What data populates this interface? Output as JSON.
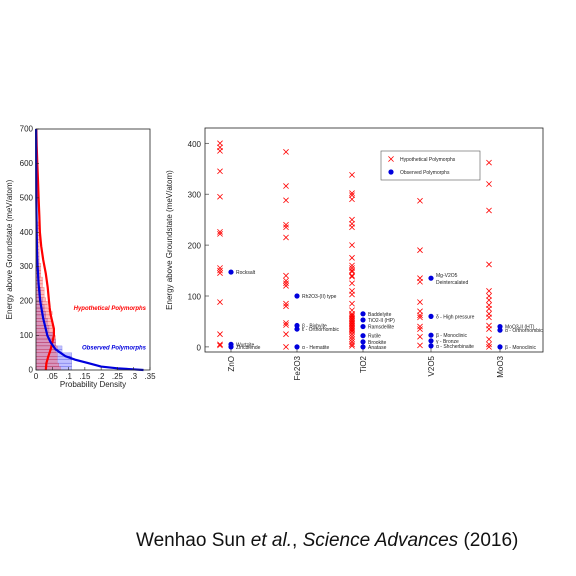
{
  "citation": {
    "author": "Wenhao Sun",
    "etal": "et al.",
    "journal": "Science Advances",
    "year": "(2016)"
  },
  "colors": {
    "hypothetical": "#ff0000",
    "observed": "#0000dd"
  },
  "chart_data": [
    {
      "type": "area",
      "orientation": "horizontal",
      "xlabel": "Probability Density",
      "ylabel": "Energy above Groundstate (meV/atom)",
      "xlim": [
        0,
        0.35
      ],
      "ylim": [
        0,
        700
      ],
      "xticks": [
        "0",
        ".05",
        ".1",
        ".15",
        ".2",
        ".25",
        ".3",
        ".35"
      ],
      "yticks": [
        "0",
        "100",
        "200",
        "300",
        "400",
        "500",
        "600",
        "700"
      ],
      "series": [
        {
          "name": "Hypothetical Polymorphs",
          "bins": [
            [
              0,
              0.075
            ],
            [
              10,
              0.07
            ],
            [
              20,
              0.065
            ],
            [
              30,
              0.065
            ],
            [
              40,
              0.065
            ],
            [
              50,
              0.06
            ],
            [
              60,
              0.065
            ],
            [
              70,
              0.06
            ],
            [
              80,
              0.06
            ],
            [
              90,
              0.06
            ],
            [
              100,
              0.055
            ],
            [
              110,
              0.055
            ],
            [
              120,
              0.05
            ],
            [
              130,
              0.05
            ],
            [
              140,
              0.05
            ],
            [
              150,
              0.045
            ],
            [
              160,
              0.05
            ],
            [
              170,
              0.04
            ],
            [
              180,
              0.035
            ],
            [
              190,
              0.035
            ],
            [
              200,
              0.03
            ],
            [
              210,
              0.025
            ],
            [
              220,
              0.025
            ],
            [
              230,
              0.025
            ],
            [
              240,
              0.02
            ],
            [
              250,
              0.02
            ],
            [
              260,
              0.02
            ],
            [
              270,
              0.015
            ],
            [
              280,
              0.015
            ],
            [
              290,
              0.015
            ],
            [
              300,
              0.015
            ],
            [
              310,
              0.01
            ],
            [
              320,
              0.01
            ],
            [
              330,
              0.01
            ],
            [
              340,
              0.01
            ],
            [
              350,
              0.01
            ],
            [
              360,
              0.01
            ],
            [
              370,
              0.01
            ],
            [
              380,
              0.01
            ],
            [
              390,
              0.01
            ],
            [
              400,
              0.01
            ],
            [
              410,
              0.008
            ],
            [
              420,
              0.008
            ]
          ],
          "curve": [
            [
              0,
              0.03
            ],
            [
              20,
              0.032
            ],
            [
              40,
              0.038
            ],
            [
              60,
              0.045
            ],
            [
              80,
              0.05
            ],
            [
              100,
              0.055
            ],
            [
              120,
              0.055
            ],
            [
              140,
              0.05
            ],
            [
              160,
              0.045
            ],
            [
              180,
              0.042
            ],
            [
              200,
              0.04
            ],
            [
              240,
              0.036
            ],
            [
              280,
              0.03
            ],
            [
              320,
              0.022
            ],
            [
              360,
              0.016
            ],
            [
              400,
              0.012
            ],
            [
              450,
              0.01
            ],
            [
              500,
              0.008
            ],
            [
              550,
              0.006
            ],
            [
              600,
              0.004
            ],
            [
              650,
              0.002
            ],
            [
              700,
              0.001
            ]
          ]
        },
        {
          "name": "Observed Polymorphs",
          "bins": [
            [
              0,
              0.11
            ],
            [
              10,
              0.11
            ],
            [
              20,
              0.11
            ],
            [
              30,
              0.11
            ],
            [
              40,
              0.11
            ],
            [
              50,
              0.08
            ],
            [
              60,
              0.08
            ],
            [
              70,
              0.06
            ],
            [
              80,
              0.06
            ],
            [
              90,
              0.05
            ],
            [
              100,
              0.05
            ],
            [
              110,
              0.04
            ],
            [
              120,
              0.04
            ],
            [
              130,
              0.035
            ],
            [
              140,
              0.035
            ],
            [
              150,
              0.03
            ],
            [
              160,
              0.03
            ],
            [
              170,
              0.025
            ],
            [
              180,
              0.025
            ],
            [
              190,
              0.02
            ],
            [
              200,
              0.02
            ],
            [
              210,
              0.015
            ],
            [
              220,
              0.015
            ],
            [
              230,
              0.015
            ],
            [
              240,
              0.01
            ],
            [
              250,
              0.01
            ],
            [
              260,
              0.01
            ],
            [
              270,
              0.01
            ],
            [
              280,
              0.01
            ],
            [
              290,
              0.01
            ]
          ],
          "curve": [
            [
              0,
              0.33
            ],
            [
              5,
              0.25
            ],
            [
              10,
              0.2
            ],
            [
              20,
              0.16
            ],
            [
              30,
              0.12
            ],
            [
              40,
              0.09
            ],
            [
              60,
              0.06
            ],
            [
              80,
              0.045
            ],
            [
              100,
              0.035
            ],
            [
              150,
              0.022
            ],
            [
              200,
              0.013
            ],
            [
              250,
              0.008
            ],
            [
              300,
              0.005
            ],
            [
              350,
              0.003
            ],
            [
              400,
              0.002
            ],
            [
              500,
              0.001
            ],
            [
              600,
              0.0005
            ],
            [
              700,
              0.0002
            ]
          ]
        }
      ]
    },
    {
      "type": "scatter",
      "ylabel": "Energy above Groundstate (meV/atom)",
      "categories": [
        "ZnO",
        "Fe2O3",
        "TiO2",
        "V2O5",
        "MoO3"
      ],
      "ylim": [
        -10,
        430
      ],
      "yticks": [
        "0",
        "100",
        "200",
        "300",
        "400"
      ],
      "legend_position": "top-right",
      "series": [
        {
          "name": "Hypothetical Polymorphs",
          "points": {
            "ZnO": [
              400,
              392,
              385,
              345,
              295,
              226,
              222,
              155,
              150,
              145,
              88,
              25,
              5,
              3
            ],
            "Fe2O3": [
              383,
              316,
              288,
              240,
              235,
              215,
              140,
              130,
              125,
              120,
              85,
              80,
              47,
              43,
              25,
              0
            ],
            "TiO2": [
              338,
              302,
              298,
              290,
              250,
              242,
              235,
              200,
              175,
              160,
              155,
              150,
              148,
              140,
              138,
              125,
              110,
              103,
              85,
              72,
              65,
              62,
              60,
              57,
              55,
              52,
              50,
              47,
              45,
              42,
              40,
              37,
              35,
              32,
              30,
              25,
              20,
              15,
              10,
              5,
              2
            ],
            "V2O5": [
              287,
              190,
              135,
              128,
              88,
              70,
              62,
              58,
              40,
              35,
              20,
              3
            ],
            "MoO3": [
              362,
              320,
              268,
              162,
              110,
              100,
              92,
              82,
              75,
              65,
              58,
              42,
              35,
              15,
              5,
              0
            ]
          }
        },
        {
          "name": "Observed Polymorphs",
          "points": [
            {
              "category": "ZnO",
              "y": 147,
              "label": "Rocksalt"
            },
            {
              "category": "ZnO",
              "y": 5,
              "label": "Wurtzite"
            },
            {
              "category": "ZnO",
              "y": 0,
              "label": "Zincblende"
            },
            {
              "category": "Fe2O3",
              "y": 100,
              "label": "Rh2O3-(II) type"
            },
            {
              "category": "Fe2O3",
              "y": 42,
              "label": "β - Bixbyite"
            },
            {
              "category": "Fe2O3",
              "y": 35,
              "label": "ε - Orthorhombic"
            },
            {
              "category": "Fe2O3",
              "y": 0,
              "label": "α - Hematite"
            },
            {
              "category": "TiO2",
              "y": 65,
              "label": "Baddelyite"
            },
            {
              "category": "TiO2",
              "y": 53,
              "label": "TiO2-II (HP)"
            },
            {
              "category": "TiO2",
              "y": 40,
              "label": "Ramsdellite"
            },
            {
              "category": "TiO2",
              "y": 22,
              "label": "Rutile"
            },
            {
              "category": "TiO2",
              "y": 10,
              "label": "Brookite"
            },
            {
              "category": "TiO2",
              "y": 0,
              "label": "Anatase"
            },
            {
              "category": "V2O5",
              "y": 135,
              "label": "Mg-V2O5 Deintercalated"
            },
            {
              "category": "V2O5",
              "y": 60,
              "label": "δ - High pressure"
            },
            {
              "category": "V2O5",
              "y": 23,
              "label": "β - Monoclinic"
            },
            {
              "category": "V2O5",
              "y": 12,
              "label": "γ - Bronze"
            },
            {
              "category": "V2O5",
              "y": 2,
              "label": "α - Shcherbinaite"
            },
            {
              "category": "MoO3",
              "y": 40,
              "label": "MoO3-II (HT)"
            },
            {
              "category": "MoO3",
              "y": 33,
              "label": "α - Orthorhombic"
            },
            {
              "category": "MoO3",
              "y": 0,
              "label": "β - Monoclinic"
            }
          ]
        }
      ]
    }
  ]
}
